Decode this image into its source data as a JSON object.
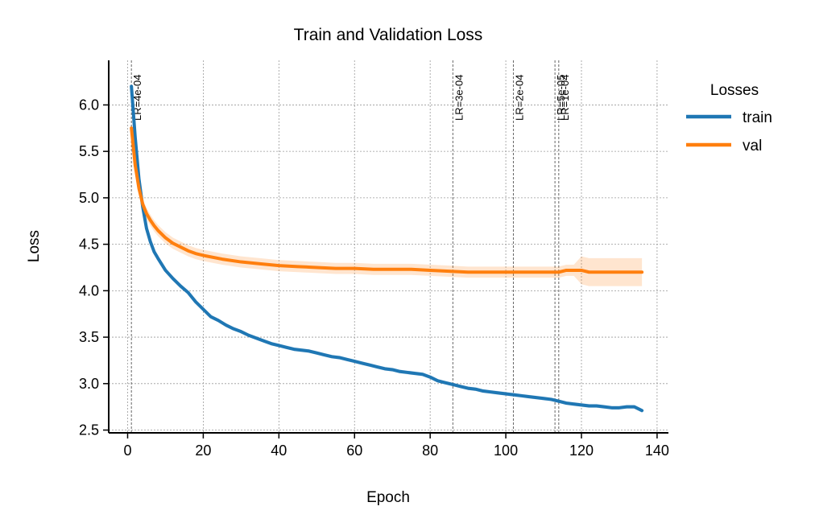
{
  "chart_data": {
    "type": "line",
    "title": "Train and Validation Loss",
    "xlabel": "Epoch",
    "ylabel": "Loss",
    "xlim": [
      -5,
      143
    ],
    "ylim": [
      2.47,
      6.48
    ],
    "xticks": [
      0,
      20,
      40,
      60,
      80,
      100,
      120,
      140
    ],
    "yticks": [
      2.5,
      3.0,
      3.5,
      4.0,
      4.5,
      5.0,
      5.5,
      6.0
    ],
    "grid": true,
    "legend": {
      "title": "Losses",
      "placement": "outside-right"
    },
    "lr_markers": [
      {
        "x": 1,
        "label": "LR=4e-04"
      },
      {
        "x": 86,
        "label": "LR=3e-04"
      },
      {
        "x": 102,
        "label": "LR=2e-04"
      },
      {
        "x": 113,
        "label": "LR=5e-05"
      },
      {
        "x": 114,
        "label": "LR=1e-04"
      }
    ],
    "series": [
      {
        "name": "train",
        "color": "#1f77b4",
        "x": [
          1,
          2,
          3,
          4,
          5,
          6,
          7,
          8,
          10,
          12,
          14,
          16,
          18,
          20,
          22,
          24,
          26,
          28,
          30,
          32,
          34,
          36,
          38,
          40,
          42,
          44,
          46,
          48,
          50,
          52,
          54,
          56,
          58,
          60,
          62,
          64,
          66,
          68,
          70,
          72,
          74,
          76,
          78,
          80,
          82,
          84,
          86,
          88,
          90,
          92,
          94,
          96,
          98,
          100,
          102,
          104,
          106,
          108,
          110,
          112,
          114,
          116,
          118,
          120,
          122,
          124,
          126,
          128,
          130,
          132,
          134,
          136
        ],
        "values": [
          6.2,
          5.65,
          5.2,
          4.9,
          4.67,
          4.53,
          4.42,
          4.35,
          4.22,
          4.13,
          4.05,
          3.98,
          3.88,
          3.8,
          3.72,
          3.68,
          3.63,
          3.59,
          3.56,
          3.52,
          3.49,
          3.46,
          3.43,
          3.41,
          3.39,
          3.37,
          3.36,
          3.35,
          3.33,
          3.31,
          3.29,
          3.28,
          3.26,
          3.24,
          3.22,
          3.2,
          3.18,
          3.16,
          3.15,
          3.13,
          3.12,
          3.11,
          3.1,
          3.07,
          3.03,
          3.01,
          2.99,
          2.97,
          2.95,
          2.94,
          2.92,
          2.91,
          2.9,
          2.89,
          2.88,
          2.87,
          2.86,
          2.85,
          2.84,
          2.83,
          2.81,
          2.79,
          2.78,
          2.77,
          2.76,
          2.76,
          2.75,
          2.74,
          2.74,
          2.75,
          2.75,
          2.71
        ],
        "band": 0.02
      },
      {
        "name": "val",
        "color": "#ff7f0e",
        "x": [
          1,
          2,
          3,
          4,
          5,
          6,
          7,
          8,
          10,
          12,
          14,
          16,
          18,
          20,
          25,
          30,
          35,
          40,
          45,
          50,
          55,
          60,
          65,
          70,
          75,
          80,
          85,
          90,
          95,
          100,
          105,
          110,
          114,
          116,
          118,
          120,
          122,
          125,
          130,
          136
        ],
        "values": [
          5.75,
          5.35,
          5.1,
          4.93,
          4.83,
          4.76,
          4.7,
          4.65,
          4.57,
          4.51,
          4.47,
          4.43,
          4.4,
          4.38,
          4.34,
          4.31,
          4.29,
          4.27,
          4.26,
          4.25,
          4.24,
          4.24,
          4.23,
          4.23,
          4.23,
          4.22,
          4.21,
          4.2,
          4.2,
          4.2,
          4.2,
          4.2,
          4.2,
          4.22,
          4.22,
          4.22,
          4.2,
          4.2,
          4.2,
          4.2
        ],
        "band": 0.06,
        "band_late": 0.15
      }
    ]
  }
}
